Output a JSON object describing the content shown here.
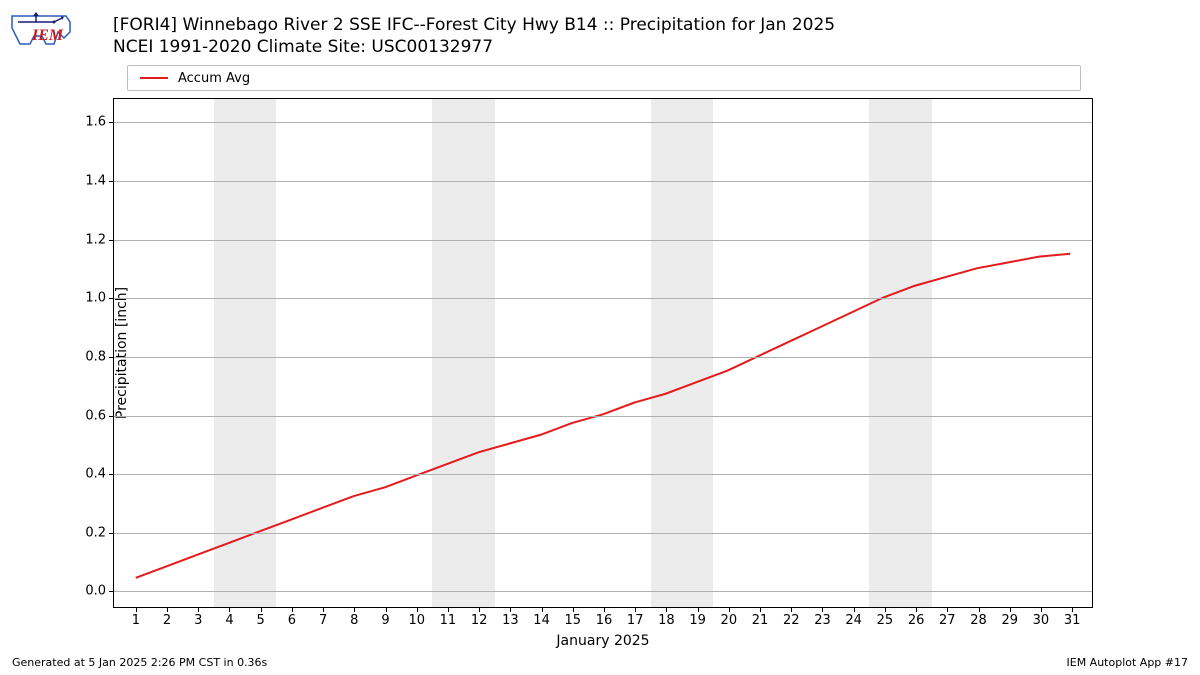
{
  "logo": {
    "text": "IEM",
    "text_color": "#c51d23",
    "outline_color": "#2a5cbf",
    "stroke_color": "#1a1a7a"
  },
  "title": {
    "line1": "[FORI4] Winnebago River 2 SSE IFC--Forest City Hwy B14 :: Precipitation for Jan 2025",
    "line2": "NCEI 1991-2020 Climate Site: USC00132977",
    "fontsize": 17,
    "color": "#000000"
  },
  "legend": {
    "items": [
      {
        "label": "Accum Avg",
        "color": "#e41a1c",
        "linewidth": 2
      }
    ],
    "border_color": "#bfbfbf",
    "fontsize": 13
  },
  "chart": {
    "type": "line",
    "background_color": "#ffffff",
    "grid_color": "#b0b0b0",
    "weekend_band_color": "#ececec",
    "weekend_bands": [
      {
        "start": 4,
        "end": 5
      },
      {
        "start": 11,
        "end": 12
      },
      {
        "start": 18,
        "end": 19
      },
      {
        "start": 25,
        "end": 26
      }
    ],
    "x": {
      "label": "January 2025",
      "label_fontsize": 14,
      "ticks": [
        1,
        2,
        3,
        4,
        5,
        6,
        7,
        8,
        9,
        10,
        11,
        12,
        13,
        14,
        15,
        16,
        17,
        18,
        19,
        20,
        21,
        22,
        23,
        24,
        25,
        26,
        27,
        28,
        29,
        30,
        31
      ],
      "lim": [
        0.3,
        31.7
      ]
    },
    "y": {
      "label": "Precipitation [inch]",
      "label_fontsize": 14,
      "ticks": [
        0.0,
        0.2,
        0.4,
        0.6,
        0.8,
        1.0,
        1.2,
        1.4,
        1.6
      ],
      "lim": [
        -0.06,
        1.68
      ]
    },
    "series": [
      {
        "name": "Accum Avg",
        "color": "#e41a1c",
        "linewidth": 2,
        "x": [
          1,
          2,
          3,
          4,
          5,
          6,
          7,
          8,
          9,
          10,
          11,
          12,
          13,
          14,
          15,
          16,
          17,
          18,
          19,
          20,
          21,
          22,
          23,
          24,
          25,
          26,
          27,
          28,
          29,
          30,
          31
        ],
        "y": [
          0.04,
          0.08,
          0.12,
          0.16,
          0.2,
          0.24,
          0.28,
          0.32,
          0.35,
          0.39,
          0.43,
          0.47,
          0.5,
          0.53,
          0.57,
          0.6,
          0.64,
          0.67,
          0.71,
          0.75,
          0.8,
          0.85,
          0.9,
          0.95,
          1.0,
          1.04,
          1.07,
          1.1,
          1.12,
          1.14,
          1.15
        ]
      }
    ]
  },
  "footer": {
    "left": "Generated at 5 Jan 2025 2:26 PM CST in 0.36s",
    "right": "IEM Autoplot App #17",
    "fontsize": 11
  }
}
